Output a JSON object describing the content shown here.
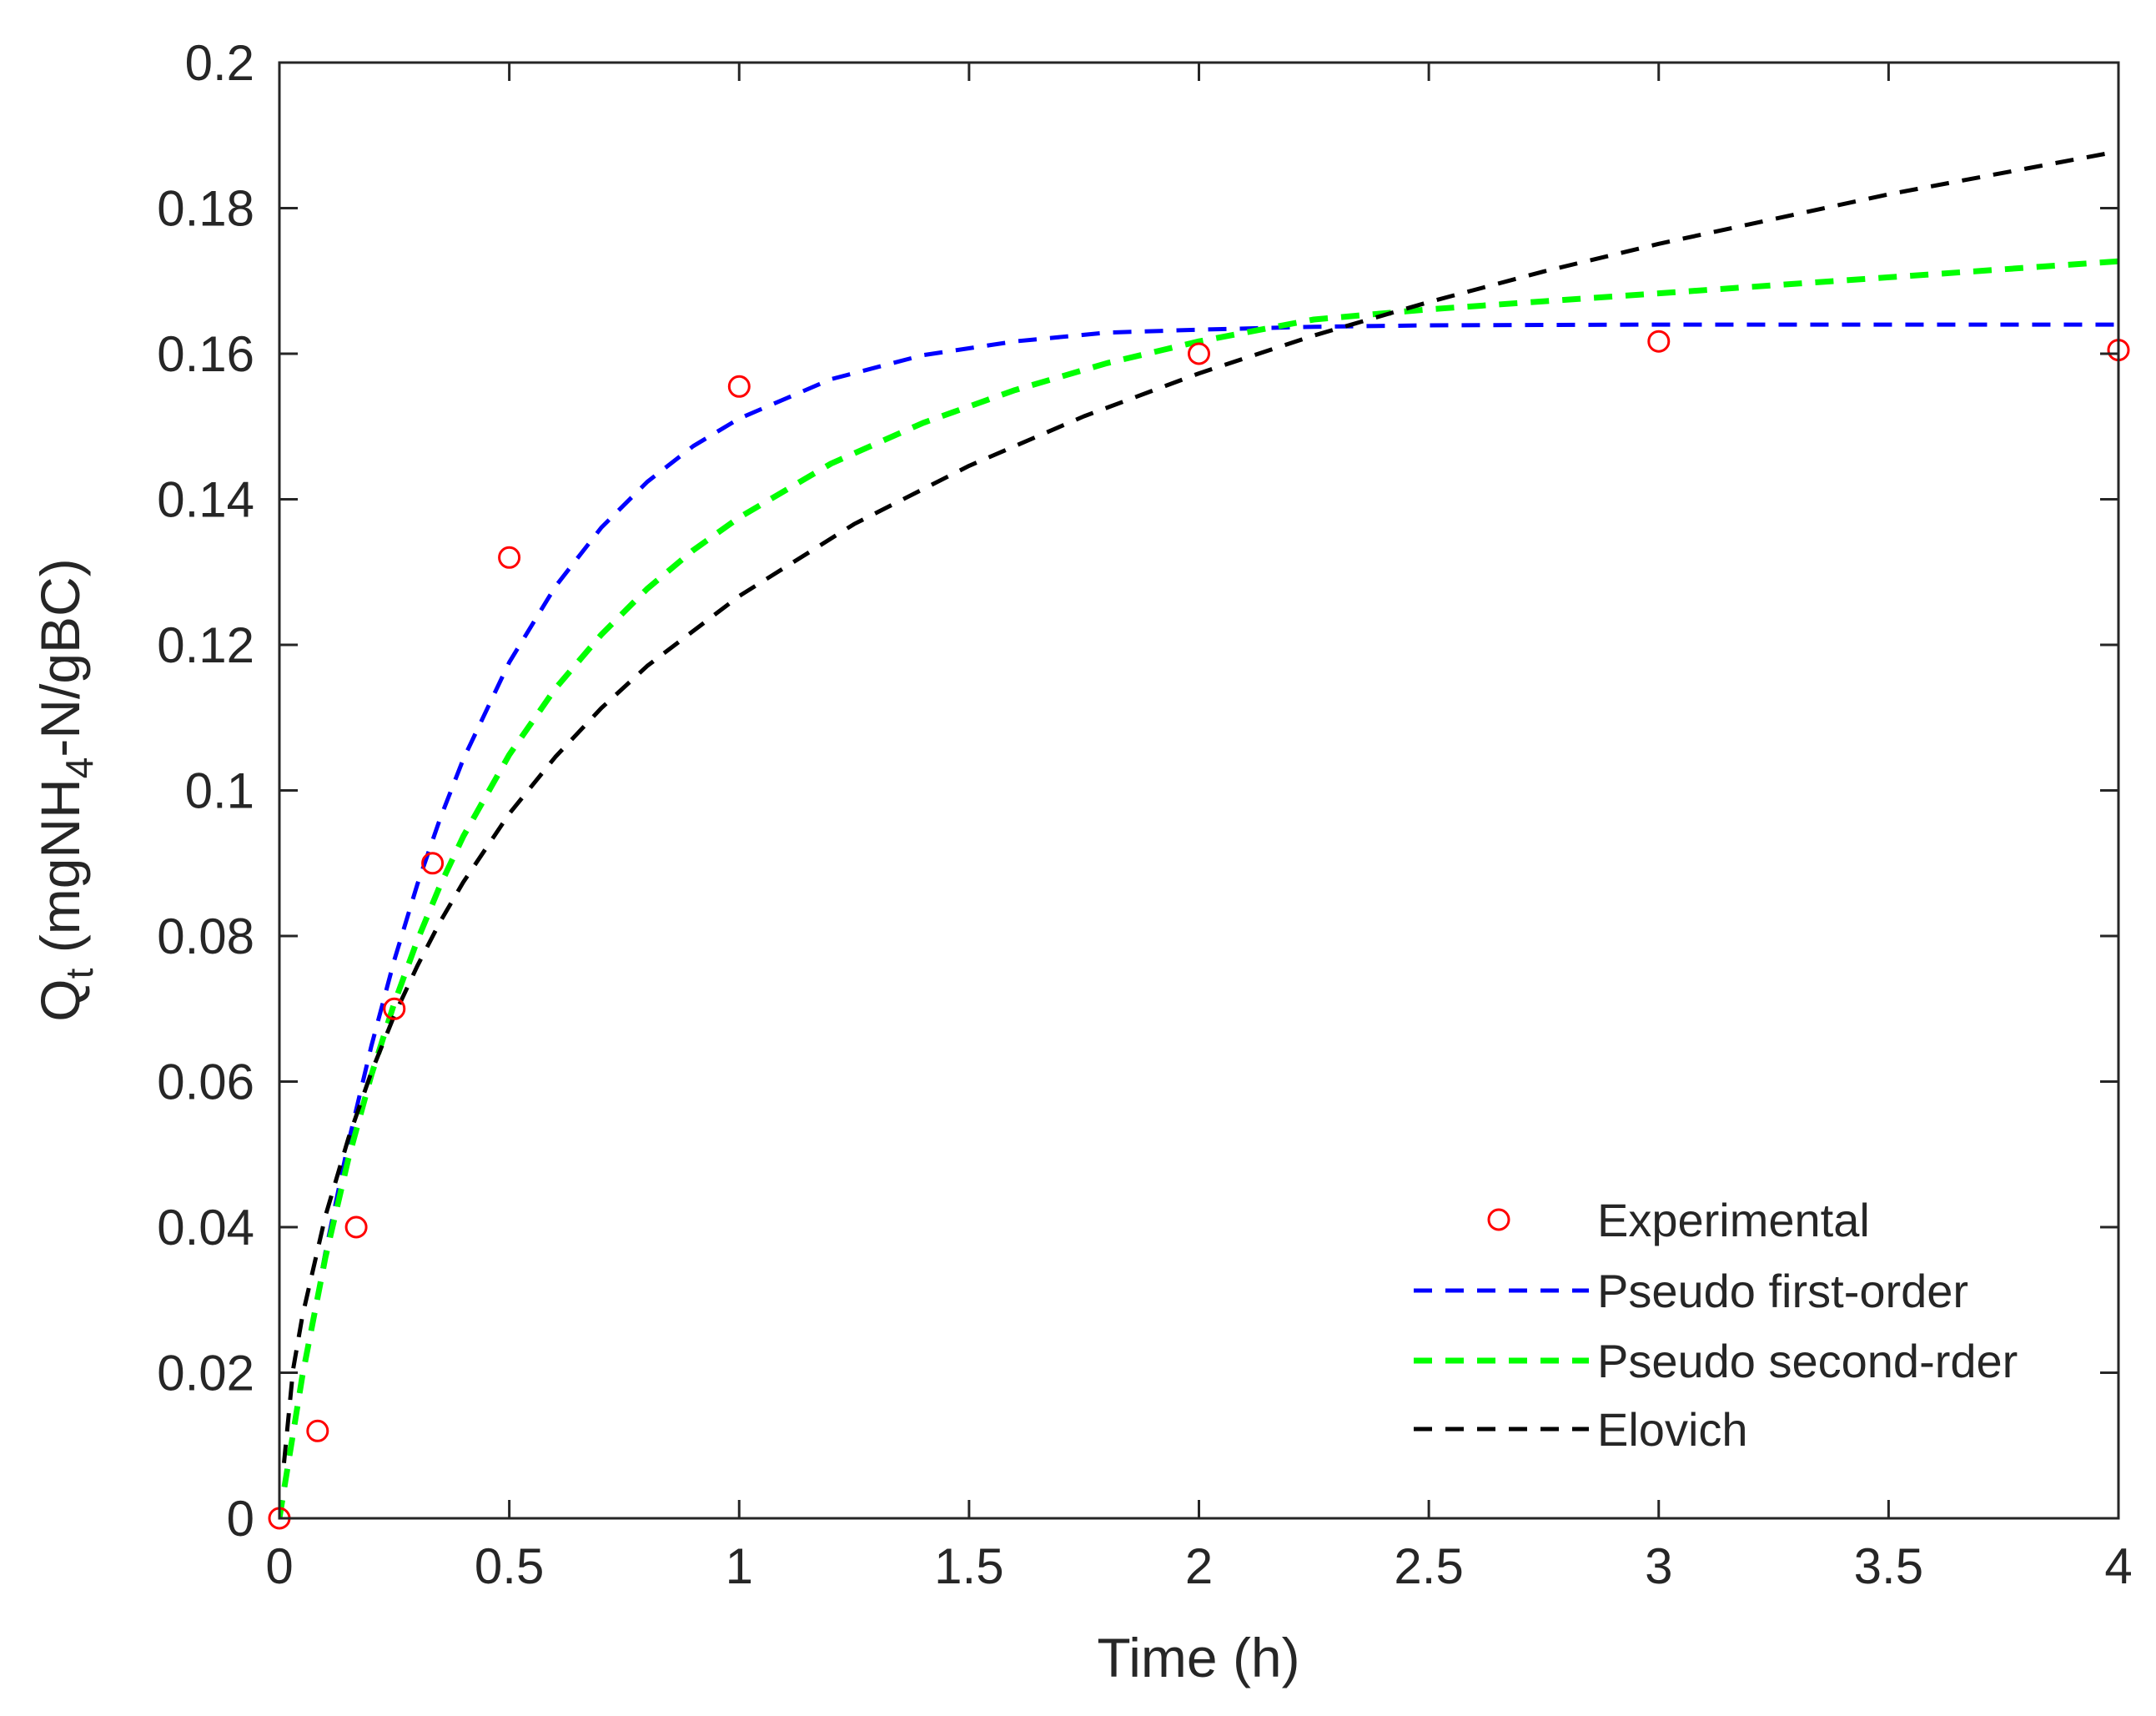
{
  "chart_data": {
    "type": "line",
    "title": "",
    "xlabel": "Time (h)",
    "ylabel": {
      "main": "Q",
      "sub": "t",
      "unit_prefix": " (mgNH",
      "unit_sub": "4",
      "unit_suffix": "-N/gBC)"
    },
    "xlim": [
      0,
      4
    ],
    "ylim": [
      0,
      0.2
    ],
    "xticks": [
      0,
      0.5,
      1,
      1.5,
      2,
      2.5,
      3,
      3.5,
      4
    ],
    "xtick_labels": [
      "0",
      "0.5",
      "1",
      "1.5",
      "2",
      "2.5",
      "3",
      "3.5",
      "4"
    ],
    "yticks": [
      0,
      0.02,
      0.04,
      0.06,
      0.08,
      0.1,
      0.12,
      0.14,
      0.16,
      0.18,
      0.2
    ],
    "ytick_labels": [
      "0",
      "0.02",
      "0.04",
      "0.06",
      "0.08",
      "0.1",
      "0.12",
      "0.14",
      "0.16",
      "0.18",
      "0.2"
    ],
    "grid": false,
    "legend_position": "bottom-right",
    "series": [
      {
        "name": "Experimental",
        "kind": "markers",
        "marker": "circle",
        "color": "#ff0000",
        "x": [
          0,
          0.083,
          0.167,
          0.25,
          0.333,
          0.5,
          1,
          2,
          3,
          4
        ],
        "y": [
          0,
          0.012,
          0.04,
          0.07,
          0.09,
          0.132,
          0.1555,
          0.16,
          0.1617,
          0.1605
        ]
      },
      {
        "name": "Pseudo first-order",
        "kind": "dashed-line",
        "color": "#0000ff",
        "x": [
          0,
          0.05,
          0.1,
          0.15,
          0.2,
          0.25,
          0.3,
          0.35,
          0.4,
          0.5,
          0.6,
          0.7,
          0.8,
          0.9,
          1,
          1.2,
          1.4,
          1.6,
          1.8,
          2,
          2.25,
          2.5,
          3,
          3.5,
          4
        ],
        "y": [
          0,
          0.0194,
          0.0365,
          0.0516,
          0.0649,
          0.0767,
          0.0871,
          0.0962,
          0.1043,
          0.1176,
          0.128,
          0.1361,
          0.1424,
          0.1473,
          0.1511,
          0.1565,
          0.1598,
          0.1617,
          0.1629,
          0.1633,
          0.1637,
          0.1639,
          0.164,
          0.164,
          0.164
        ]
      },
      {
        "name": "Pseudo second-rder",
        "kind": "dashed-line",
        "color": "#00ff00",
        "x": [
          0,
          0.05,
          0.1,
          0.15,
          0.2,
          0.25,
          0.3,
          0.35,
          0.4,
          0.5,
          0.6,
          0.7,
          0.8,
          0.9,
          1,
          1.2,
          1.4,
          1.6,
          1.8,
          2,
          2.25,
          2.5,
          3,
          3.5,
          4
        ],
        "y": [
          0,
          0.0196,
          0.0358,
          0.0494,
          0.0609,
          0.0708,
          0.0794,
          0.087,
          0.0937,
          0.1049,
          0.114,
          0.1214,
          0.1277,
          0.133,
          0.1375,
          0.1449,
          0.1505,
          0.155,
          0.1587,
          0.1617,
          0.1647,
          0.1661,
          0.1683,
          0.1705,
          0.1727
        ]
      },
      {
        "name": "Elovich",
        "kind": "dashed-line",
        "color": "#000000",
        "x": [
          0.01,
          0.03,
          0.05,
          0.1,
          0.15,
          0.2,
          0.25,
          0.3,
          0.35,
          0.4,
          0.5,
          0.6,
          0.7,
          0.8,
          1,
          1.25,
          1.5,
          1.75,
          2,
          2.25,
          2.5,
          2.75,
          3,
          3.5,
          4
        ],
        "y": [
          0.0076,
          0.0205,
          0.0278,
          0.0415,
          0.0522,
          0.0613,
          0.0691,
          0.0759,
          0.082,
          0.0874,
          0.0968,
          0.1046,
          0.1113,
          0.1171,
          0.1267,
          0.1366,
          0.1446,
          0.1514,
          0.1573,
          0.1625,
          0.1671,
          0.1713,
          0.1751,
          0.1819,
          0.1878
        ]
      }
    ]
  }
}
